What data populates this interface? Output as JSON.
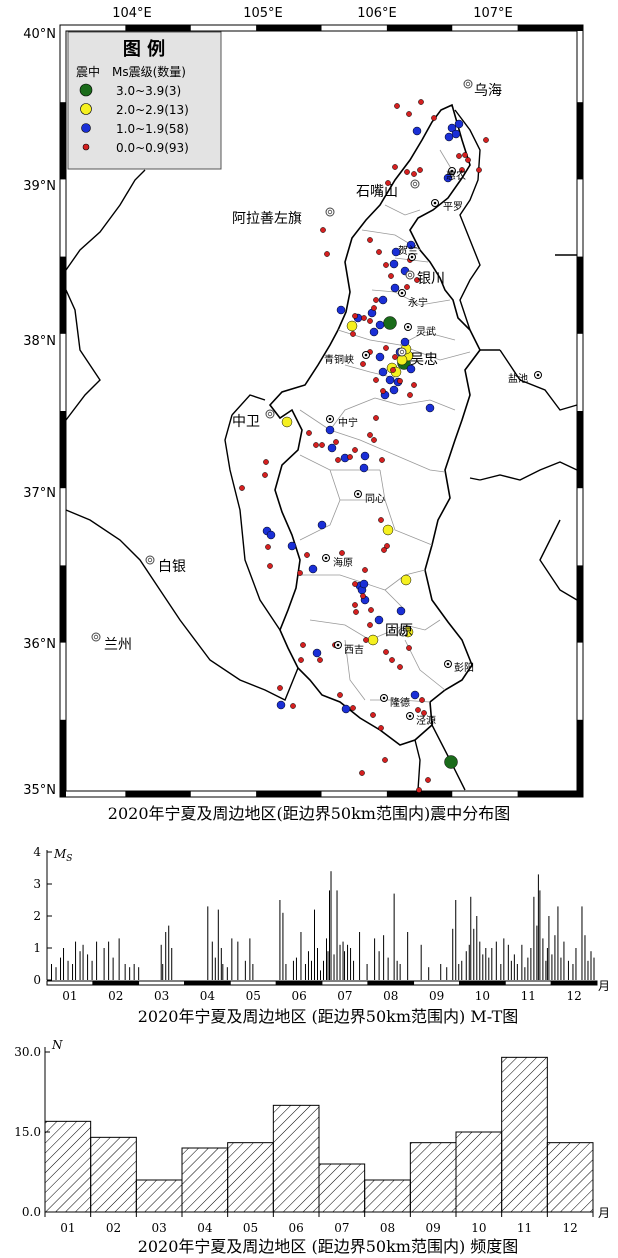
{
  "map": {
    "lon_ticks": [
      "104°E",
      "105°E",
      "106°E",
      "107°E"
    ],
    "lat_ticks": [
      "40°N",
      "39°N",
      "38°N",
      "37°N",
      "36°N",
      "35°N"
    ],
    "legend": {
      "title": "图 例",
      "header_left": "震中",
      "header_right": "Ms震级(数量)",
      "items": [
        {
          "label": "3.0~3.9(3)",
          "color": "#1a6b1a"
        },
        {
          "label": "2.0~2.9(13)",
          "color": "#f5f020"
        },
        {
          "label": "1.0~1.9(58)",
          "color": "#1a2fd6"
        },
        {
          "label": "0.0~0.9(93)",
          "color": "#d42020"
        }
      ]
    },
    "cities": [
      {
        "name": "乌海",
        "big": true
      },
      {
        "name": "石嘴山",
        "big": true
      },
      {
        "name": "阿拉善左旗",
        "big": true
      },
      {
        "name": "平罗",
        "big": false
      },
      {
        "name": "惠农",
        "big": false
      },
      {
        "name": "贺兰",
        "big": false
      },
      {
        "name": "银川",
        "big": true
      },
      {
        "name": "永宁",
        "big": false
      },
      {
        "name": "灵武",
        "big": false
      },
      {
        "name": "青铜峡",
        "big": false
      },
      {
        "name": "吴忠",
        "big": true
      },
      {
        "name": "盐池",
        "big": false
      },
      {
        "name": "中卫",
        "big": true
      },
      {
        "name": "中宁",
        "big": false
      },
      {
        "name": "同心",
        "big": false
      },
      {
        "name": "白银",
        "big": true
      },
      {
        "name": "海原",
        "big": false
      },
      {
        "name": "兰州",
        "big": true
      },
      {
        "name": "固原",
        "big": true
      },
      {
        "name": "西吉",
        "big": false
      },
      {
        "name": "彭阳",
        "big": false
      },
      {
        "name": "隆德",
        "big": false
      },
      {
        "name": "泾源",
        "big": false
      }
    ],
    "caption": "2020年宁夏及周边地区(距边界50km范围内)震中分布图"
  },
  "chart_data": [
    {
      "type": "bar",
      "title": "2020年宁夏及周边地区 (距边界50km范围内) M-T图",
      "ylabel": "MS",
      "xlabel": "月",
      "ylim": [
        0,
        4
      ],
      "y_ticks": [
        "0",
        "1",
        "2",
        "3",
        "4"
      ],
      "categories": [
        "01",
        "02",
        "03",
        "04",
        "05",
        "06",
        "07",
        "08",
        "09",
        "10",
        "11",
        "12"
      ],
      "events_day_mag": [
        [
          3,
          0.5
        ],
        [
          6,
          0.4
        ],
        [
          9,
          0.7
        ],
        [
          11,
          1.0
        ],
        [
          14,
          0.6
        ],
        [
          17,
          0.5
        ],
        [
          19,
          1.2
        ],
        [
          22,
          0.9
        ],
        [
          24,
          1.1
        ],
        [
          27,
          0.8
        ],
        [
          30,
          0.6
        ],
        [
          33,
          1.2
        ],
        [
          38,
          1.0
        ],
        [
          41,
          1.2
        ],
        [
          44,
          0.7
        ],
        [
          48,
          1.3
        ],
        [
          52,
          0.5
        ],
        [
          55,
          0.4
        ],
        [
          58,
          0.5
        ],
        [
          61,
          0.4
        ],
        [
          76,
          1.1
        ],
        [
          77,
          0.5
        ],
        [
          79,
          1.5
        ],
        [
          81,
          1.7
        ],
        [
          83,
          1.0
        ],
        [
          107,
          2.3
        ],
        [
          110,
          1.2
        ],
        [
          112,
          0.7
        ],
        [
          114,
          2.2
        ],
        [
          116,
          1.0
        ],
        [
          117,
          0.5
        ],
        [
          120,
          0.4
        ],
        [
          123,
          1.3
        ],
        [
          127,
          1.2
        ],
        [
          132,
          0.6
        ],
        [
          135,
          1.3
        ],
        [
          137,
          0.5
        ],
        [
          155,
          2.5
        ],
        [
          157,
          2.1
        ],
        [
          159,
          0.5
        ],
        [
          164,
          0.6
        ],
        [
          166,
          0.7
        ],
        [
          169,
          1.5
        ],
        [
          172,
          0.5
        ],
        [
          174,
          0.9
        ],
        [
          176,
          0.6
        ],
        [
          178,
          2.2
        ],
        [
          180,
          1.0
        ],
        [
          182,
          0.3
        ],
        [
          184,
          0.6
        ],
        [
          186,
          1.3
        ],
        [
          187,
          0.9
        ],
        [
          188,
          2.8
        ],
        [
          189,
          3.4
        ],
        [
          191,
          0.8
        ],
        [
          193,
          2.8
        ],
        [
          195,
          1.1
        ],
        [
          197,
          1.2
        ],
        [
          198,
          0.9
        ],
        [
          200,
          1.1
        ],
        [
          202,
          1.0
        ],
        [
          204,
          0.6
        ],
        [
          208,
          1.5
        ],
        [
          213,
          0.5
        ],
        [
          218,
          1.3
        ],
        [
          221,
          0.9
        ],
        [
          224,
          1.4
        ],
        [
          227,
          0.7
        ],
        [
          231,
          2.7
        ],
        [
          233,
          0.6
        ],
        [
          235,
          0.5
        ],
        [
          240,
          1.5
        ],
        [
          249,
          1.1
        ],
        [
          254,
          0.4
        ],
        [
          262,
          0.5
        ],
        [
          266,
          0.4
        ],
        [
          270,
          1.6
        ],
        [
          272,
          2.5
        ],
        [
          274,
          0.5
        ],
        [
          276,
          0.6
        ],
        [
          279,
          0.9
        ],
        [
          281,
          1.1
        ],
        [
          282,
          2.6
        ],
        [
          284,
          1.6
        ],
        [
          286,
          2.0
        ],
        [
          288,
          1.2
        ],
        [
          290,
          0.8
        ],
        [
          292,
          1.0
        ],
        [
          294,
          0.7
        ],
        [
          296,
          1.0
        ],
        [
          299,
          1.2
        ],
        [
          302,
          0.5
        ],
        [
          304,
          1.3
        ],
        [
          307,
          1.1
        ],
        [
          309,
          0.6
        ],
        [
          311,
          0.8
        ],
        [
          313,
          0.5
        ],
        [
          316,
          1.1
        ],
        [
          318,
          0.4
        ],
        [
          320,
          0.7
        ],
        [
          322,
          1.0
        ],
        [
          324,
          2.6
        ],
        [
          326,
          1.7
        ],
        [
          327,
          3.3
        ],
        [
          328,
          2.8
        ],
        [
          330,
          1.3
        ],
        [
          332,
          0.6
        ],
        [
          333,
          1.0
        ],
        [
          334,
          2.0
        ],
        [
          336,
          0.8
        ],
        [
          338,
          1.4
        ],
        [
          340,
          2.3
        ],
        [
          342,
          0.7
        ],
        [
          344,
          1.2
        ],
        [
          347,
          0.6
        ],
        [
          350,
          0.5
        ],
        [
          352,
          1.0
        ],
        [
          356,
          2.3
        ],
        [
          358,
          1.4
        ],
        [
          360,
          0.6
        ],
        [
          362,
          0.9
        ],
        [
          364,
          0.7
        ]
      ]
    },
    {
      "type": "bar",
      "title": "2020年宁夏及周边地区 (距边界50km范围内) 频度图",
      "ylabel": "N",
      "xlabel": "月",
      "ylim": [
        0,
        30
      ],
      "y_ticks": [
        "0.0",
        "15.0",
        "30.0"
      ],
      "categories": [
        "01",
        "02",
        "03",
        "04",
        "05",
        "06",
        "07",
        "08",
        "09",
        "10",
        "11",
        "12"
      ],
      "values": [
        17,
        14,
        6,
        12,
        13,
        20,
        9,
        6,
        13,
        15,
        29,
        13
      ]
    }
  ]
}
